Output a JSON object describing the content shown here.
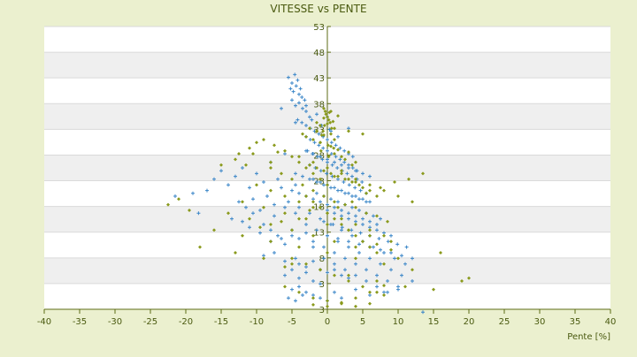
{
  "chart_data": {
    "type": "scatter",
    "title": "VITESSE vs PENTE",
    "xlabel": "Pente [%]",
    "ylabel": "",
    "xlim": [
      -40,
      40
    ],
    "ylim": [
      3,
      53
    ],
    "x_ticks": [
      "-40",
      "-35",
      "-30",
      "-25",
      "-20",
      "-15",
      "-10",
      "-5",
      "0",
      "5",
      "10",
      "15",
      "20",
      "25",
      "30",
      "35",
      "40"
    ],
    "y_ticks": [
      "3",
      "3",
      "8",
      "13",
      "18",
      "23",
      "28",
      "33",
      "38",
      "43",
      "48",
      "53"
    ],
    "y_axis_position": "x=0",
    "grid": true,
    "legend": "none",
    "series": [
      {
        "color": "#3a86c8",
        "marker": "plus",
        "x": [
          -5.5,
          -5.0,
          -4.6,
          -4.2,
          -3.8,
          -5.2,
          -4.8,
          -4.4,
          -4.0,
          -3.6,
          -3.2,
          -5.0,
          -4.5,
          -4.0,
          -3.5,
          -3.0,
          -2.5,
          -4.2,
          -3.6,
          -3.0,
          -2.4,
          -1.8,
          -1.2,
          -0.6,
          0.0,
          0.6,
          1.2,
          1.8,
          2.4,
          3.0,
          3.6,
          -3.0,
          -2.4,
          -1.8,
          -1.2,
          -0.6,
          0.0,
          0.6,
          1.2,
          1.8,
          2.4,
          3.0,
          3.6,
          4.2,
          -2.8,
          -2.1,
          -1.4,
          -0.7,
          0.0,
          0.7,
          1.4,
          2.1,
          2.8,
          3.5,
          4.2,
          4.9,
          -2.5,
          -1.7,
          -0.9,
          -0.1,
          0.7,
          1.5,
          2.3,
          3.1,
          3.9,
          4.7,
          5.5,
          -2.0,
          -1.0,
          0.0,
          1.0,
          2.0,
          3.0,
          4.0,
          5.0,
          6.0,
          -1.5,
          -0.5,
          0.5,
          1.5,
          2.5,
          3.5,
          4.5,
          5.5,
          6.5,
          7.5,
          -1.0,
          0.0,
          1.0,
          2.0,
          3.0,
          4.0,
          5.0,
          6.0,
          7.0,
          8.0,
          9.0,
          -0.5,
          0.8,
          2.1,
          3.4,
          4.7,
          6.0,
          7.3,
          8.6,
          9.9,
          11.2,
          0.0,
          1.5,
          3.0,
          4.5,
          6.0,
          7.5,
          9.0,
          10.5,
          12.0,
          -21.5,
          -19.0,
          -18.2,
          -17.0,
          -16.0,
          -15.0,
          -14.0,
          -13.0,
          -12.0,
          -11.0,
          -10.0,
          -9.0,
          -8.0,
          -7.0,
          -6.0,
          -12.5,
          -11.5,
          -10.5,
          -9.5,
          -8.5,
          -7.5,
          -6.5,
          -5.5,
          -4.5,
          -13.5,
          -12.0,
          -10.5,
          -9.0,
          -7.5,
          -6.0,
          -4.5,
          -8.0,
          -7.0,
          -6.0,
          -5.0,
          -4.0,
          -3.0,
          -2.0,
          -9.0,
          -7.5,
          -6.0,
          -4.5,
          -3.0,
          -11.0,
          -9.5,
          -8.0,
          -6.5,
          -5.0,
          -6.0,
          -5.0,
          -4.0,
          -3.0,
          -2.0,
          -1.0,
          -5.0,
          -4.0,
          -3.0,
          -2.0,
          -1.0,
          0.0,
          1.0,
          -4.0,
          -3.0,
          -2.0,
          -1.0,
          0.0,
          1.0,
          2.0,
          3.0,
          -3.0,
          -2.0,
          -1.0,
          0.0,
          1.0,
          2.0,
          3.0,
          4.0,
          5.0,
          6.0,
          -4.5,
          -3.5,
          -2.5,
          -1.5,
          -0.5,
          0.5,
          1.5,
          2.5,
          3.5,
          4.5,
          5.5,
          -5.0,
          -4.0,
          -3.0,
          -2.0,
          -1.0,
          0.0,
          1.0,
          2.0,
          3.0,
          4.0,
          5.0,
          6.0,
          7.0,
          -4.0,
          -2.5,
          -1.0,
          0.5,
          2.0,
          3.5,
          5.0,
          6.5,
          8.0,
          9.5,
          11.0,
          -3.0,
          -1.5,
          0.0,
          1.5,
          3.0,
          4.5,
          6.0,
          7.5,
          9.0,
          10.5,
          12.0,
          -2.0,
          -0.5,
          1.0,
          2.5,
          4.0,
          5.5,
          7.0,
          8.5,
          10.0,
          -0.5,
          1.0,
          2.5,
          4.0,
          5.5,
          7.0,
          8.5,
          -5.5,
          -4.5,
          -3.5,
          2.0,
          4.0,
          6.0,
          8.0,
          10.0,
          13.5,
          -4.5,
          0.0,
          3.0,
          -1.0,
          0.5,
          1.5,
          -6.5,
          -3.0,
          -1.5,
          -2.2,
          -0.8,
          0.3
        ],
        "y": [
          44.0,
          43.0,
          44.5,
          43.5,
          42.0,
          42.0,
          41.5,
          42.5,
          41.0,
          40.5,
          40.0,
          40.0,
          39.0,
          39.5,
          38.5,
          38.0,
          37.0,
          36.5,
          36.0,
          35.5,
          35.0,
          34.5,
          34.0,
          33.5,
          33.0,
          32.5,
          32.0,
          31.5,
          31.0,
          30.5,
          30.0,
          33.5,
          33.0,
          32.5,
          32.0,
          31.5,
          31.0,
          30.5,
          30.0,
          29.5,
          29.0,
          28.5,
          28.0,
          27.5,
          31.0,
          30.5,
          30.0,
          29.5,
          29.0,
          28.5,
          28.0,
          27.5,
          27.0,
          26.5,
          26.0,
          25.5,
          28.5,
          28.0,
          27.5,
          27.0,
          26.5,
          26.0,
          25.5,
          25.0,
          24.5,
          24.0,
          23.5,
          26.0,
          25.5,
          25.0,
          24.5,
          24.0,
          23.5,
          23.0,
          22.5,
          22.0,
          23.5,
          23.0,
          22.5,
          22.0,
          21.5,
          21.0,
          20.5,
          20.0,
          19.5,
          19.0,
          21.0,
          20.5,
          20.0,
          19.5,
          19.0,
          18.5,
          18.0,
          17.5,
          17.0,
          16.5,
          16.0,
          18.5,
          18.0,
          17.5,
          17.0,
          16.5,
          16.0,
          15.5,
          15.0,
          14.5,
          14.0,
          16.0,
          15.5,
          15.0,
          14.5,
          14.0,
          13.5,
          13.0,
          12.5,
          12.0,
          23.0,
          23.5,
          20.0,
          24.0,
          26.0,
          27.5,
          25.0,
          26.5,
          28.0,
          24.5,
          27.0,
          25.5,
          29.0,
          26.0,
          30.5,
          22.0,
          21.0,
          22.5,
          20.5,
          23.0,
          21.5,
          24.5,
          22.0,
          25.0,
          19.0,
          18.5,
          20.0,
          18.0,
          19.5,
          21.0,
          20.0,
          15.0,
          16.0,
          14.5,
          17.0,
          15.5,
          16.5,
          14.0,
          12.5,
          13.0,
          11.5,
          12.0,
          10.5,
          17.5,
          16.5,
          17.0,
          15.5,
          16.0,
          9.0,
          10.0,
          8.5,
          9.5,
          8.0,
          7.5,
          6.5,
          7.0,
          6.0,
          5.5,
          5.0,
          4.5,
          6.0,
          11.0,
          10.5,
          11.5,
          10.0,
          9.5,
          10.0,
          9.0,
          8.5,
          31.0,
          30.5,
          30.0,
          29.5,
          29.0,
          28.5,
          28.0,
          27.5,
          27.0,
          26.5,
          27.0,
          26.5,
          26.0,
          25.5,
          25.0,
          24.5,
          24.0,
          23.5,
          23.0,
          22.5,
          22.0,
          24.0,
          23.5,
          23.0,
          22.5,
          22.0,
          21.5,
          21.0,
          20.5,
          20.0,
          19.5,
          19.0,
          18.5,
          18.0,
          21.0,
          20.0,
          19.0,
          18.0,
          17.0,
          16.0,
          15.0,
          14.0,
          13.0,
          12.0,
          11.0,
          18.0,
          17.0,
          16.0,
          15.0,
          14.0,
          13.0,
          12.0,
          11.0,
          10.0,
          9.0,
          8.0,
          15.0,
          14.0,
          13.0,
          12.0,
          11.0,
          10.0,
          9.0,
          8.0,
          7.0,
          12.0,
          11.0,
          10.0,
          9.0,
          8.0,
          7.0,
          6.0,
          5.0,
          4.5,
          5.5,
          5.0,
          6.5,
          5.5,
          6.0,
          6.5,
          2.5,
          36.0,
          37.0,
          35.0,
          35.5,
          34.5,
          33.5,
          38.5,
          39.0,
          37.5,
          36.5,
          35.5,
          34.8
        ]
      },
      {
        "color": "#8a9a1c",
        "marker": "diamond",
        "x": [
          0.0,
          0.2,
          0.4,
          -0.2,
          -0.4,
          0.6,
          -0.6,
          0.8,
          -0.8,
          0.3,
          -0.3,
          0.0,
          0.5,
          -0.5,
          1.0,
          0.1,
          -1.0,
          0.9,
          -0.9,
          0.2,
          -3.5,
          -3.0,
          -2.5,
          -2.0,
          -1.5,
          -1.0,
          -0.5,
          0.5,
          1.0,
          1.5,
          2.0,
          2.5,
          3.0,
          3.5,
          4.0,
          -6.0,
          -5.0,
          -4.0,
          -3.0,
          -2.0,
          -1.0,
          0.0,
          1.0,
          2.0,
          3.0,
          4.0,
          5.0,
          6.0,
          7.0,
          -8.0,
          -6.5,
          -5.0,
          -3.5,
          -2.0,
          -0.5,
          1.0,
          2.5,
          4.0,
          5.5,
          7.0,
          8.5,
          -10.0,
          -8.0,
          -6.0,
          -4.0,
          -2.0,
          0.0,
          2.0,
          4.0,
          6.0,
          8.0,
          -12.0,
          -9.0,
          -6.0,
          -3.0,
          0.0,
          3.0,
          6.0,
          9.0,
          -14.0,
          -11.0,
          -8.0,
          -5.0,
          -2.0,
          1.0,
          4.0,
          7.0,
          10.0,
          -16.0,
          -12.0,
          -8.0,
          -4.0,
          0.0,
          4.0,
          8.0,
          12.0,
          -18.0,
          -13.0,
          -9.0,
          -5.0,
          -1.0,
          3.0,
          7.0,
          11.0,
          15.0,
          -22.5,
          -21.0,
          -19.5,
          -13.0,
          -12.5,
          -11.0,
          -10.0,
          -8.0,
          -7.0,
          -15.0,
          -9.5,
          -6.5,
          -4.0,
          -2.5,
          1.5,
          3.5,
          5.5,
          7.5,
          9.5,
          11.5,
          13.5,
          16.0,
          19.0,
          20.0,
          -3.0,
          -2.0,
          -1.0,
          0.0,
          1.0,
          2.0,
          3.0,
          4.0,
          5.0,
          6.0,
          -5.0,
          -3.0,
          -1.0,
          1.0,
          3.0,
          5.0,
          7.0,
          -2.5,
          -1.5,
          -0.5,
          0.5,
          1.5,
          2.5,
          3.5,
          4.5,
          -6.0,
          -4.0,
          -2.0,
          0.0,
          2.0,
          4.0,
          6.0,
          8.0,
          -4.0,
          -2.0,
          0.0,
          2.0,
          4.0,
          6.0,
          8.0,
          10.0,
          12.0,
          -2.0,
          0.0,
          2.0,
          4.0,
          6.0,
          8.0,
          -1.0,
          1.0,
          3.0,
          5.0,
          -7.5,
          -9.0,
          -10.5,
          -11.5,
          -6.0,
          7.0,
          9.0,
          -0.5,
          0.5,
          1.5,
          -1.5
        ],
        "y": [
          37.0,
          36.5,
          36.0,
          37.5,
          35.5,
          35.0,
          34.5,
          36.2,
          33.8,
          37.8,
          38.0,
          35.8,
          34.0,
          36.8,
          33.0,
          32.0,
          32.5,
          31.5,
          31.0,
          30.0,
          34.0,
          33.5,
          35.0,
          33.0,
          34.5,
          32.5,
          33.8,
          31.8,
          30.5,
          31.2,
          30.0,
          29.5,
          30.8,
          28.5,
          29.0,
          31.0,
          30.0,
          29.0,
          28.0,
          27.0,
          26.0,
          25.0,
          26.5,
          27.5,
          26.0,
          25.5,
          24.5,
          24.0,
          23.0,
          28.0,
          27.0,
          26.0,
          25.0,
          24.0,
          23.0,
          22.0,
          21.5,
          21.0,
          20.0,
          19.5,
          18.5,
          25.0,
          24.0,
          23.0,
          22.0,
          21.0,
          20.0,
          19.0,
          18.0,
          17.0,
          16.0,
          22.0,
          21.0,
          20.0,
          19.0,
          18.0,
          17.0,
          16.0,
          15.0,
          20.0,
          19.0,
          18.0,
          17.0,
          16.0,
          15.0,
          14.0,
          13.0,
          12.0,
          17.0,
          16.0,
          15.0,
          14.0,
          13.0,
          12.0,
          11.0,
          10.0,
          14.0,
          13.0,
          12.0,
          11.0,
          10.0,
          9.0,
          8.0,
          7.0,
          6.5,
          21.5,
          22.5,
          20.5,
          29.5,
          30.5,
          31.5,
          32.5,
          29.0,
          30.8,
          28.5,
          17.5,
          18.5,
          19.0,
          20.5,
          21.0,
          22.0,
          23.5,
          24.5,
          25.5,
          26.0,
          27.0,
          13.0,
          8.0,
          8.5,
          23.0,
          22.0,
          21.0,
          20.0,
          19.0,
          18.0,
          17.0,
          16.0,
          15.0,
          14.0,
          12.0,
          11.0,
          10.0,
          9.0,
          8.0,
          7.0,
          6.0,
          28.5,
          28.0,
          27.5,
          27.0,
          26.5,
          26.0,
          25.5,
          25.0,
          7.0,
          6.0,
          5.0,
          4.5,
          4.0,
          3.5,
          4.0,
          5.5,
          30.0,
          29.0,
          28.0,
          27.0,
          26.0,
          25.0,
          24.0,
          23.0,
          22.0,
          3.8,
          3.5,
          4.2,
          5.0,
          6.0,
          7.2,
          35.5,
          35.0,
          34.5,
          34.0,
          32.0,
          33.0,
          30.5,
          28.5,
          10.5,
          14.5,
          13.5,
          38.5,
          38.0,
          37.2,
          36.0
        ]
      }
    ]
  }
}
